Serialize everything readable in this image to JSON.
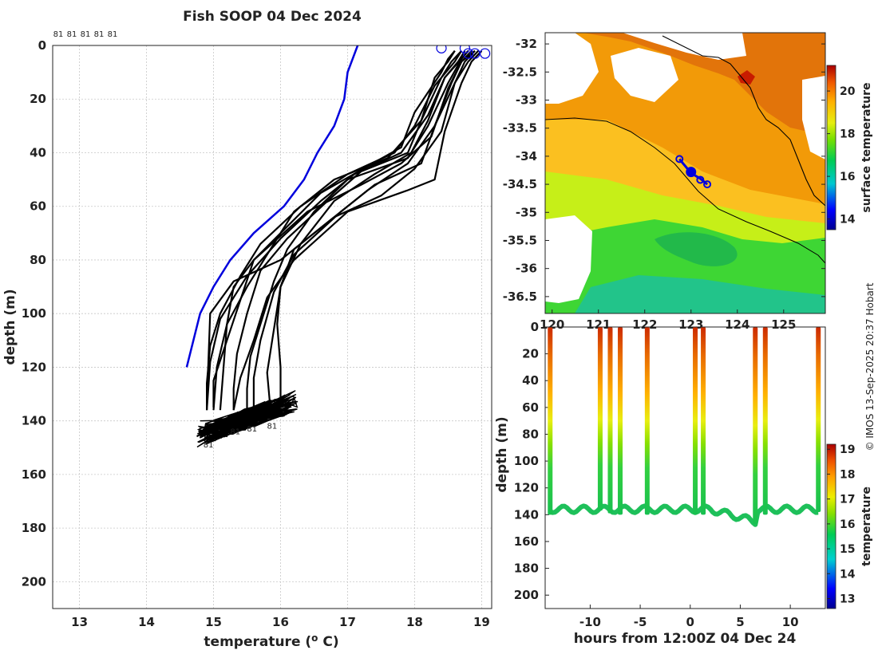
{
  "header": {
    "title": "Fish SOOP 04 Dec 2024",
    "credit": "© IMOS 13-Sep-2025 20:37 Hobart"
  },
  "chart_data": [
    {
      "id": "profiles",
      "type": "line",
      "xlabel": "temperature (",
      "xlabel_unit": "o",
      "xlabel_end": " C)",
      "ylabel": "depth (m)",
      "xlim": [
        12.6,
        19.15
      ],
      "ylim": [
        0,
        210
      ],
      "y_reversed": true,
      "xticks": [
        13,
        14,
        15,
        16,
        17,
        18,
        19
      ],
      "yticks": [
        0,
        20,
        40,
        60,
        80,
        100,
        120,
        140,
        160,
        180,
        200
      ],
      "top_labels": [
        "81",
        "81",
        "81",
        "81",
        "81"
      ],
      "bottom_labels": [
        {
          "x": 14.9,
          "y": 147,
          "text": "81"
        },
        {
          "x": 15.3,
          "y": 142,
          "text": "81"
        },
        {
          "x": 15.55,
          "y": 141,
          "text": "81"
        },
        {
          "x": 15.85,
          "y": 140,
          "text": "81"
        }
      ],
      "climatology": {
        "name": "climatology",
        "color": "#0000dd",
        "temp": [
          17.15,
          17.0,
          16.95,
          16.8,
          16.55,
          16.35,
          16.05,
          15.6,
          15.25,
          15.0,
          14.8,
          14.6
        ],
        "depth": [
          0,
          10,
          20,
          30,
          40,
          50,
          60,
          70,
          80,
          90,
          100,
          120
        ]
      },
      "surface_circles": [
        [
          18.4,
          1
        ],
        [
          18.75,
          1
        ],
        [
          18.8,
          3
        ],
        [
          18.9,
          3
        ],
        [
          19.05,
          3
        ]
      ],
      "profiles": [
        {
          "temp": [
            18.6,
            18.5,
            18.4,
            18.0,
            17.8,
            17.3,
            16.6,
            16.0,
            15.6,
            15.4,
            15.2,
            15.0,
            15.0
          ],
          "depth": [
            2,
            5,
            10,
            25,
            38,
            45,
            55,
            70,
            80,
            95,
            110,
            125,
            135
          ]
        },
        {
          "temp": [
            18.7,
            18.55,
            18.4,
            18.1,
            17.9,
            17.2,
            16.7,
            16.1,
            15.7,
            15.5,
            15.35,
            15.3,
            15.3
          ],
          "depth": [
            2,
            6,
            12,
            28,
            40,
            47,
            58,
            72,
            84,
            100,
            115,
            128,
            136
          ]
        },
        {
          "temp": [
            18.8,
            18.7,
            18.5,
            18.2,
            17.9,
            17.0,
            16.5,
            16.1,
            15.9,
            15.7,
            15.55,
            15.5,
            15.5
          ],
          "depth": [
            2,
            5,
            14,
            30,
            42,
            50,
            62,
            76,
            88,
            104,
            116,
            128,
            136
          ]
        },
        {
          "temp": [
            18.7,
            18.6,
            18.3,
            18.0,
            17.7,
            17.0,
            16.3,
            15.7,
            15.4,
            15.1,
            14.95,
            14.9,
            14.9
          ],
          "depth": [
            2,
            6,
            15,
            30,
            40,
            48,
            60,
            74,
            86,
            100,
            112,
            126,
            136
          ]
        },
        {
          "temp": [
            18.9,
            18.75,
            18.6,
            18.3,
            18.1,
            17.4,
            16.9,
            16.2,
            15.9,
            15.7,
            15.6,
            15.6
          ],
          "depth": [
            2,
            6,
            14,
            30,
            44,
            52,
            62,
            78,
            92,
            110,
            124,
            136
          ]
        },
        {
          "temp": [
            18.8,
            18.7,
            18.45,
            18.2,
            17.8,
            17.1,
            16.6,
            16.0,
            15.5,
            15.1,
            14.95,
            14.9
          ],
          "depth": [
            2,
            5,
            12,
            26,
            40,
            48,
            58,
            72,
            86,
            102,
            118,
            136
          ]
        },
        {
          "temp": [
            18.95,
            18.8,
            18.6,
            18.4,
            18.0,
            17.5,
            16.8,
            16.2,
            16.0,
            15.9,
            15.8,
            15.85
          ],
          "depth": [
            2,
            6,
            14,
            32,
            46,
            56,
            64,
            76,
            90,
            106,
            122,
            136
          ]
        },
        {
          "temp": [
            18.9,
            18.7,
            18.5,
            18.25,
            17.8,
            17.2,
            16.4,
            15.6,
            15.3,
            15.2,
            15.15,
            15.1
          ],
          "depth": [
            2,
            6,
            16,
            34,
            44,
            52,
            62,
            80,
            90,
            104,
            120,
            136
          ]
        },
        {
          "temp": [
            18.85,
            18.7,
            18.55,
            18.3,
            17.9,
            17.3,
            16.7,
            16.0,
            15.3,
            14.95,
            14.9
          ],
          "depth": [
            2,
            6,
            14,
            30,
            44,
            54,
            66,
            80,
            88,
            100,
            134
          ]
        },
        {
          "temp": [
            18.6,
            18.5,
            18.3,
            18.1,
            17.6,
            16.8,
            16.2,
            15.8,
            15.5,
            15.2,
            15.05,
            15.0
          ],
          "depth": [
            2,
            6,
            12,
            28,
            42,
            50,
            62,
            78,
            90,
            104,
            120,
            136
          ]
        },
        {
          "temp": [
            19.0,
            18.85,
            18.7,
            18.45,
            18.3,
            17.9,
            17.0,
            16.2,
            15.8,
            15.6,
            15.4,
            15.3
          ],
          "depth": [
            2,
            6,
            14,
            32,
            50,
            54,
            62,
            80,
            94,
            110,
            124,
            136
          ]
        },
        {
          "temp": [
            18.75,
            18.65,
            18.45,
            18.2,
            17.95,
            17.4,
            16.8,
            16.3,
            16.0,
            15.95,
            16.0,
            16.0
          ],
          "depth": [
            2,
            6,
            12,
            28,
            40,
            48,
            58,
            74,
            90,
            104,
            120,
            132
          ]
        }
      ],
      "bottom_cluster": {
        "t_range": [
          14.75,
          16.3
        ],
        "d_range": [
          128,
          150
        ]
      }
    },
    {
      "id": "map",
      "type": "heatmap",
      "xlim": [
        119.85,
        125.9
      ],
      "ylim": [
        -36.8,
        -31.8
      ],
      "yticks": [
        -32,
        -32.5,
        -33,
        -33.5,
        -34,
        -34.5,
        -35,
        -35.5,
        -36,
        -36.5
      ],
      "xticks": [
        120,
        121,
        122,
        123,
        124,
        125
      ],
      "colorbar": {
        "label": "surface temperature",
        "ticks": [
          14,
          16,
          18,
          20
        ],
        "min": 13.5,
        "max": 21.2
      },
      "track": {
        "lon": [
          122.75,
          122.85,
          123.0,
          123.1,
          123.2,
          123.35
        ],
        "lat": [
          -34.05,
          -34.15,
          -34.3,
          -34.35,
          -34.4,
          -34.5
        ],
        "color": "#0000dd"
      },
      "track_points": [
        [
          122.75,
          -34.05,
          "small"
        ],
        [
          123.0,
          -34.28,
          "large"
        ],
        [
          123.2,
          -34.42,
          "small"
        ],
        [
          123.35,
          -34.5,
          "small"
        ]
      ]
    },
    {
      "id": "section",
      "type": "scatter",
      "xlabel": "hours from 12:00Z 04 Dec 24",
      "ylabel": "depth (m)",
      "xlim": [
        -14.5,
        13.5
      ],
      "ylim": [
        0,
        210
      ],
      "y_reversed": true,
      "xticks": [
        -10,
        -5,
        0,
        5,
        10
      ],
      "yticks": [
        0,
        20,
        40,
        60,
        80,
        100,
        120,
        140,
        160,
        180,
        200
      ],
      "colorbar": {
        "label": "temperature",
        "ticks": [
          13,
          14,
          15,
          16,
          17,
          18,
          19
        ],
        "min": 12.6,
        "max": 19.2
      },
      "casts": [
        {
          "hour": -14.0,
          "bottom": 140
        },
        {
          "hour": -9.0,
          "bottom": 137
        },
        {
          "hour": -8.0,
          "bottom": 139
        },
        {
          "hour": -7.0,
          "bottom": 140
        },
        {
          "hour": -4.3,
          "bottom": 140
        },
        {
          "hour": 0.5,
          "bottom": 140
        },
        {
          "hour": 1.3,
          "bottom": 140
        },
        {
          "hour": 6.5,
          "bottom": 147
        },
        {
          "hour": 7.5,
          "bottom": 140
        },
        {
          "hour": 12.8,
          "bottom": 138
        }
      ]
    }
  ]
}
